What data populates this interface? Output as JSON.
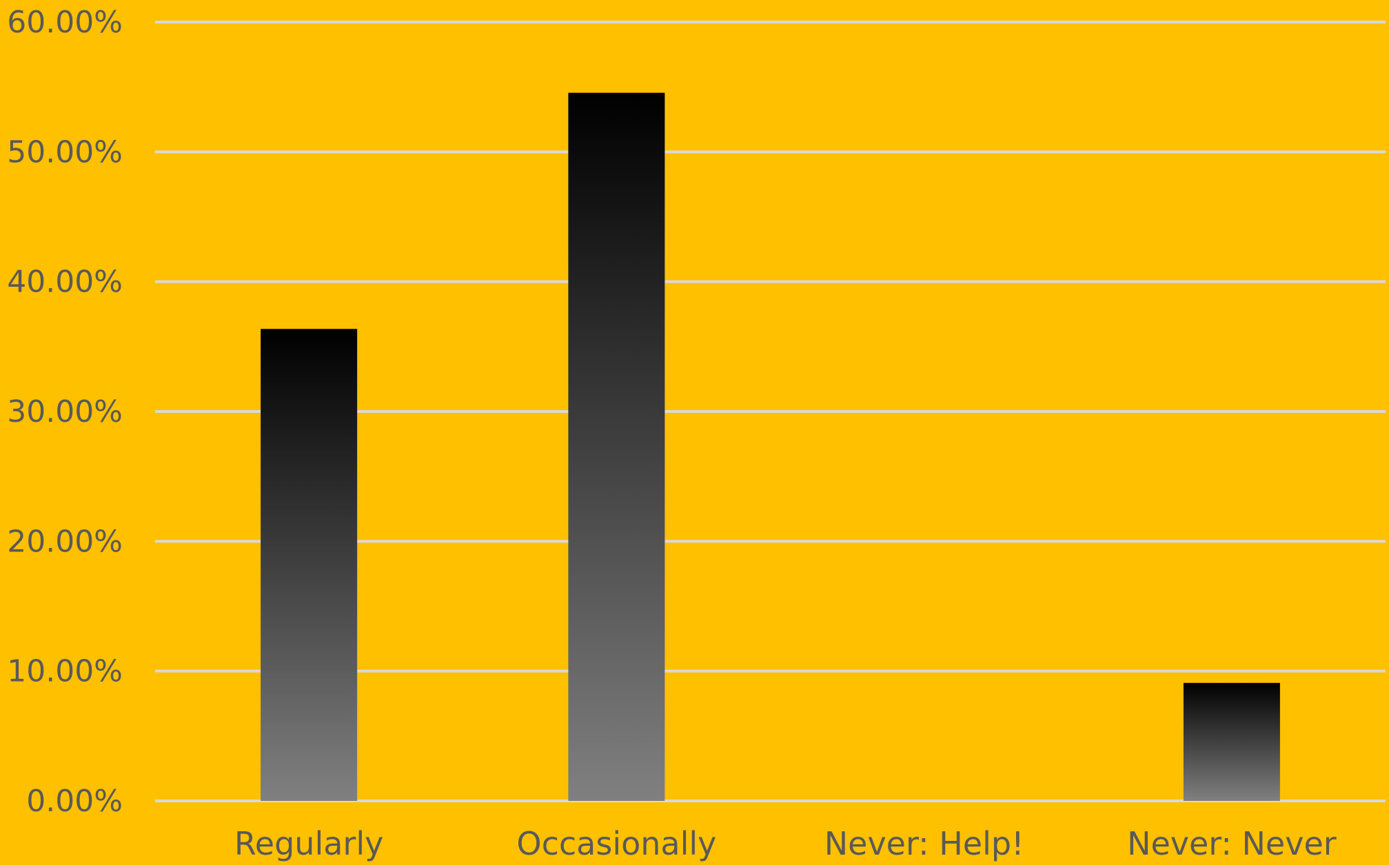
{
  "colors": {
    "background": "#FFC000",
    "gridline": "#D9D9D9",
    "text": "#595959",
    "bar_gradient_top": "#000000",
    "bar_gradient_bottom": "#808080"
  },
  "chart_data": {
    "type": "bar",
    "title": "",
    "xlabel": "",
    "ylabel": "",
    "categories": [
      "Regularly",
      "Occasionally",
      "Never: Help!",
      "Never: Never"
    ],
    "values": [
      36.36,
      54.55,
      0,
      9.09
    ],
    "value_format": "percent_2dp",
    "ylim": [
      0,
      60
    ],
    "yticks": [
      "0.00%",
      "10.00%",
      "20.00%",
      "30.00%",
      "40.00%",
      "50.00%",
      "60.00%"
    ],
    "grid": true,
    "legend": "none"
  }
}
